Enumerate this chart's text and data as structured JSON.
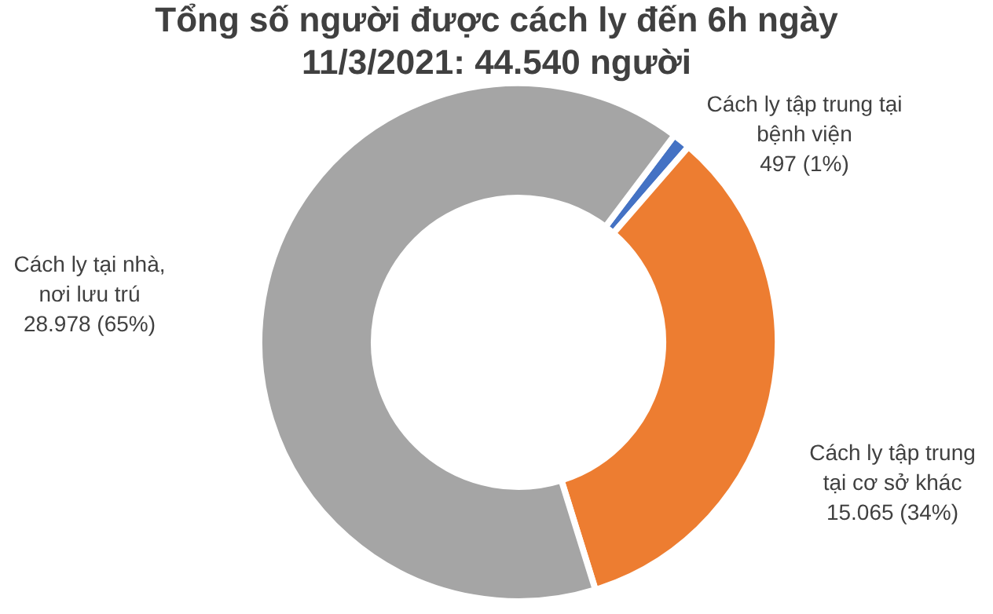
{
  "chart_data": {
    "type": "donut",
    "title": "Tổng số người được cách ly đến 6h ngày\n11/3/2021: 44.540 người",
    "categories": [
      "Cách ly tập trung tại\nbệnh viện",
      "Cách ly tập trung\ntại cơ sở khác",
      "Cách ly tại nhà,\nnơi lưu trú"
    ],
    "values": [
      497,
      15065,
      28978
    ],
    "value_labels": [
      "497 (1%)",
      "15.065 (34%)",
      "28.978 (65%)"
    ],
    "colors": [
      "#4472c4",
      "#ed7d31",
      "#a5a5a5"
    ],
    "legend": false
  }
}
